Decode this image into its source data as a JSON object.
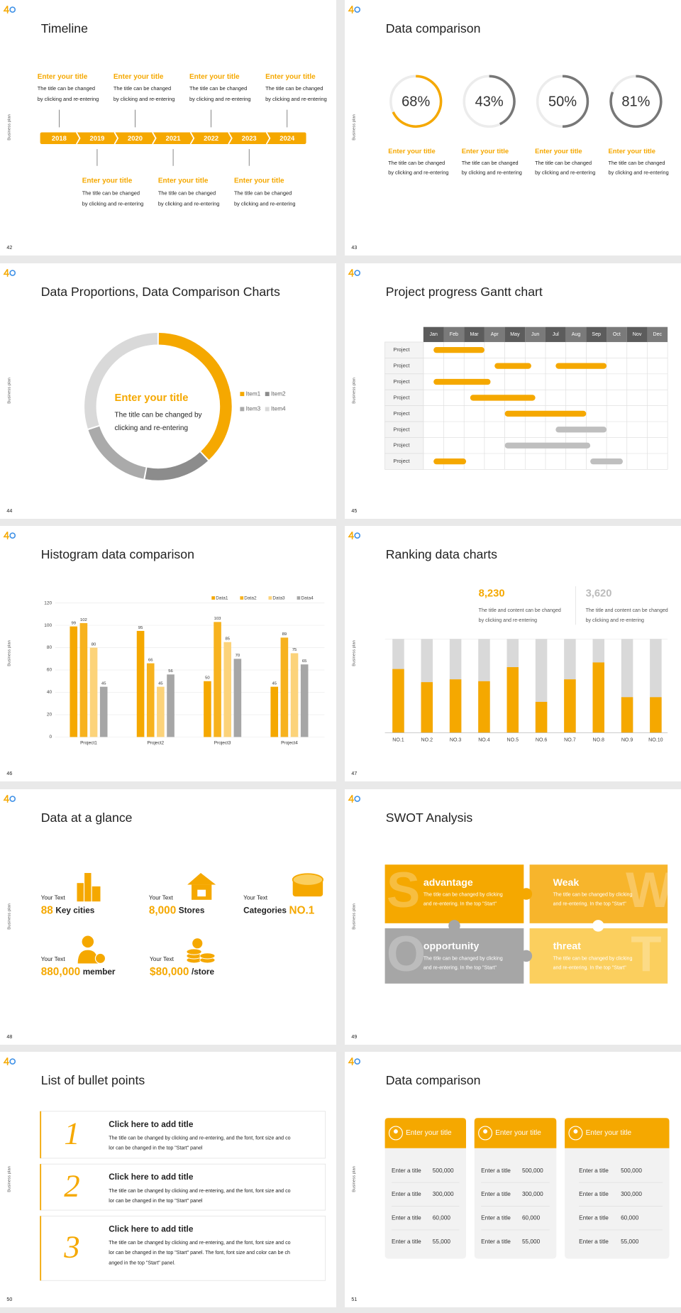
{
  "slides": [
    {
      "type": "timeline",
      "number": "42",
      "side_label": "Business plan",
      "title": "Timeline",
      "years": [
        "2018",
        "2019",
        "2020",
        "2021",
        "2022",
        "2023",
        "2024"
      ],
      "top_items": [
        {
          "title": "Enter your title",
          "lines": [
            "The title can be changed",
            "by clicking and re-entering"
          ]
        },
        {
          "title": "Enter your title",
          "lines": [
            "The title can be changed",
            "by clicking and re-entering"
          ]
        },
        {
          "title": "Enter your title",
          "lines": [
            "The title can be changed",
            "by clicking and re-entering"
          ]
        },
        {
          "title": "Enter your title",
          "lines": [
            "The title can be changed",
            "by clicking and re-entering"
          ]
        }
      ],
      "bottom_items": [
        {
          "title": "Enter your title",
          "lines": [
            "The title can be changed",
            "by clicking and re-entering"
          ]
        },
        {
          "title": "Enter your title",
          "lines": [
            "The title can be changed",
            "by clicking and re-entering"
          ]
        },
        {
          "title": "Enter your title",
          "lines": [
            "The title can be changed",
            "by clicking and re-entering"
          ]
        }
      ]
    },
    {
      "type": "rings",
      "number": "43",
      "side_label": "Business plan",
      "title": "Data comparison",
      "rings": {
        "values": [
          68,
          43,
          50,
          81
        ],
        "value_labels": [
          "68%",
          "43%",
          "50%",
          "81%"
        ],
        "colors": [
          "#f5a800",
          "#777777",
          "#777777",
          "#777777"
        ]
      },
      "items": [
        {
          "title": "Enter your title",
          "lines": [
            "The title can be changed",
            "by clicking and re-entering"
          ]
        },
        {
          "title": "Enter your title",
          "lines": [
            "The title can be changed",
            "by clicking and re-entering"
          ]
        },
        {
          "title": "Enter your title",
          "lines": [
            "The title can be changed",
            "by clicking and re-entering"
          ]
        },
        {
          "title": "Enter your title",
          "lines": [
            "The title can be changed",
            "by clicking and re-entering"
          ]
        }
      ]
    },
    {
      "type": "donut",
      "number": "44",
      "side_label": "Business plan",
      "title": "Data Proportions, Data Comparison Charts",
      "center_title": "Enter your title",
      "center_lines": [
        "The title can be changed by",
        "clicking and re-entering"
      ],
      "names": [
        "Item1",
        "Item2",
        "Item3",
        "Item4"
      ],
      "values": [
        38,
        15,
        17,
        30
      ],
      "colors": [
        "#f5a800",
        "#8c8c8c",
        "#aaaaaa",
        "#d9d9d9"
      ]
    },
    {
      "type": "gantt",
      "number": "45",
      "side_label": "Business plan",
      "title": "Project progress Gantt chart",
      "months": [
        "Jan",
        "Feb",
        "Mar",
        "Apr",
        "May",
        "Jun",
        "Jul",
        "Aug",
        "Sep",
        "Oct",
        "Nov",
        "Dec"
      ],
      "rows": [
        {
          "label": "Project",
          "bars": [
            {
              "start": 0.5,
              "end": 3,
              "color": "#f5a800"
            }
          ]
        },
        {
          "label": "Project",
          "bars": [
            {
              "start": 3.5,
              "end": 5.3,
              "color": "#f5a800"
            },
            {
              "start": 6.5,
              "end": 9,
              "color": "#f5a800"
            }
          ]
        },
        {
          "label": "Project",
          "bars": [
            {
              "start": 0.5,
              "end": 3.3,
              "color": "#f5a800"
            }
          ]
        },
        {
          "label": "Project",
          "bars": [
            {
              "start": 2.3,
              "end": 5.5,
              "color": "#f5a800"
            }
          ]
        },
        {
          "label": "Project",
          "bars": [
            {
              "start": 4,
              "end": 8,
              "color": "#f5a800"
            }
          ]
        },
        {
          "label": "Project",
          "bars": [
            {
              "start": 6.5,
              "end": 9,
              "color": "#bfbfbf"
            }
          ]
        },
        {
          "label": "Project",
          "bars": [
            {
              "start": 4,
              "end": 8.2,
              "color": "#bfbfbf"
            }
          ]
        },
        {
          "label": "Project",
          "bars": [
            {
              "start": 0.5,
              "end": 2.1,
              "color": "#f5a800"
            },
            {
              "start": 8.2,
              "end": 9.8,
              "color": "#bfbfbf"
            }
          ]
        }
      ]
    },
    {
      "type": "histogram",
      "number": "46",
      "side_label": "Business plan",
      "title": "Histogram data comparison",
      "chart": {
        "categories": [
          "Project1",
          "Project2",
          "Project3",
          "Project4"
        ],
        "series": [
          {
            "name": "Data1",
            "color": "#f5a800",
            "values": [
              99,
              95,
              50,
              45
            ]
          },
          {
            "name": "Data2",
            "color": "#f7b21e",
            "values": [
              102,
              66,
              103,
              89
            ]
          },
          {
            "name": "Data3",
            "color": "#fcd37a",
            "values": [
              80,
              45,
              85,
              75
            ]
          },
          {
            "name": "Data4",
            "color": "#a6a6a6",
            "values": [
              45,
              56,
              70,
              65
            ]
          }
        ],
        "ylim": [
          0,
          120
        ],
        "yticks": [
          0,
          20,
          40,
          60,
          80,
          100,
          120
        ],
        "grid": true
      }
    },
    {
      "type": "ranking",
      "number": "47",
      "side_label": "Business plan",
      "title": "Ranking data charts",
      "stats": [
        {
          "value": "8,230",
          "color": "#f5a800",
          "lines": [
            "The title and content can be changed",
            "by clicking and re-entering"
          ]
        },
        {
          "value": "3,620",
          "color": "#bbbbbb",
          "lines": [
            "The title and content can be changed",
            "by clicking and re-entering"
          ]
        }
      ],
      "categories": [
        "NO.1",
        "NO.2",
        "NO.3",
        "NO.4",
        "NO.5",
        "NO.6",
        "NO.7",
        "NO.8",
        "NO.9",
        "NO.10"
      ],
      "values": [
        68,
        54,
        57,
        55,
        70,
        33,
        57,
        75,
        38,
        38
      ],
      "color": "#f5a800",
      "track_color": "#d9d9d9"
    },
    {
      "type": "glance",
      "number": "48",
      "side_label": "Business plan",
      "title": "Data at a glance",
      "items": [
        {
          "label": "Your Text",
          "parts": [
            {
              "text": "88",
              "emphasis": true
            },
            {
              "text": "Key cities",
              "emphasis": false
            }
          ]
        },
        {
          "label": "Your Text",
          "parts": [
            {
              "text": "8,000",
              "emphasis": true
            },
            {
              "text": "Stores",
              "emphasis": false
            }
          ]
        },
        {
          "label": "Your Text",
          "parts": [
            {
              "text": "Categories",
              "emphasis": false
            },
            {
              "text": "NO.1",
              "emphasis": true
            }
          ]
        },
        {
          "label": "Your Text",
          "parts": [
            {
              "text": "880,000",
              "emphasis": true
            },
            {
              "text": "member",
              "emphasis": false
            }
          ]
        },
        {
          "label": "Your Text",
          "parts": [
            {
              "text": "$80,000",
              "emphasis": true
            },
            {
              "text": "/store",
              "emphasis": false
            }
          ]
        }
      ]
    },
    {
      "type": "swot",
      "number": "49",
      "side_label": "Business plan",
      "title": "SWOT Analysis",
      "tiles": [
        {
          "letter": "S",
          "title": "advantage",
          "color": "#f5a800",
          "lines": [
            "The title can be changed by clicking",
            "and re-entering. In the top \"Start\""
          ]
        },
        {
          "letter": "W",
          "title": "Weak",
          "color": "#f7b52c",
          "lines": [
            "The title can be changed by clicking",
            "and re-entering. In the top \"Start\""
          ]
        },
        {
          "letter": "O",
          "title": "opportunity",
          "color": "#a6a6a6",
          "lines": [
            "The title can be changed by clicking",
            "and re-entering. In the top \"Start\""
          ]
        },
        {
          "letter": "T",
          "title": "threat",
          "color": "#fbcf5e",
          "lines": [
            "The title can be changed by clicking",
            "and re-entering. In the top \"Start\""
          ]
        }
      ]
    },
    {
      "type": "bullets",
      "number": "50",
      "side_label": "Business plan",
      "title": "List of bullet points",
      "items": [
        {
          "number": "1",
          "title": "Click here to add title",
          "lines": [
            "The title can be changed by clicking and re-entering, and the font, font size and co",
            "lor can be changed in the top \"Start\" panel"
          ]
        },
        {
          "number": "2",
          "title": "Click here to add title",
          "lines": [
            "The title can be changed by clicking and re-entering, and the font, font size and co",
            "lor can be changed in the top \"Start\" panel"
          ]
        },
        {
          "number": "3",
          "title": "Click here to add title",
          "lines": [
            "The title can be changed by clicking and re-entering, and the font, font size and co",
            "lor can be changed in the top \"Start\" panel. The font, font size and color can be ch",
            "anged in the top \"Start\" panel."
          ]
        }
      ]
    },
    {
      "type": "cards",
      "number": "51",
      "side_label": "Business plan",
      "title": "Data comparison",
      "cards": [
        {
          "title": "Enter your title",
          "rows": [
            {
              "label": "Enter a title",
              "value": "500,000"
            },
            {
              "label": "Enter a title",
              "value": "300,000"
            },
            {
              "label": "Enter a title",
              "value": "60,000"
            },
            {
              "label": "Enter a title",
              "value": "55,000"
            }
          ]
        },
        {
          "title": "Enter your title",
          "rows": [
            {
              "label": "Enter a title",
              "value": "500,000"
            },
            {
              "label": "Enter a title",
              "value": "300,000"
            },
            {
              "label": "Enter a title",
              "value": "60,000"
            },
            {
              "label": "Enter a title",
              "value": "55,000"
            }
          ]
        },
        {
          "title": "Enter your title",
          "rows": [
            {
              "label": "Enter a title",
              "value": "500,000"
            },
            {
              "label": "Enter a title",
              "value": "300,000"
            },
            {
              "label": "Enter a title",
              "value": "60,000"
            },
            {
              "label": "Enter a title",
              "value": "55,000"
            }
          ]
        }
      ]
    }
  ]
}
